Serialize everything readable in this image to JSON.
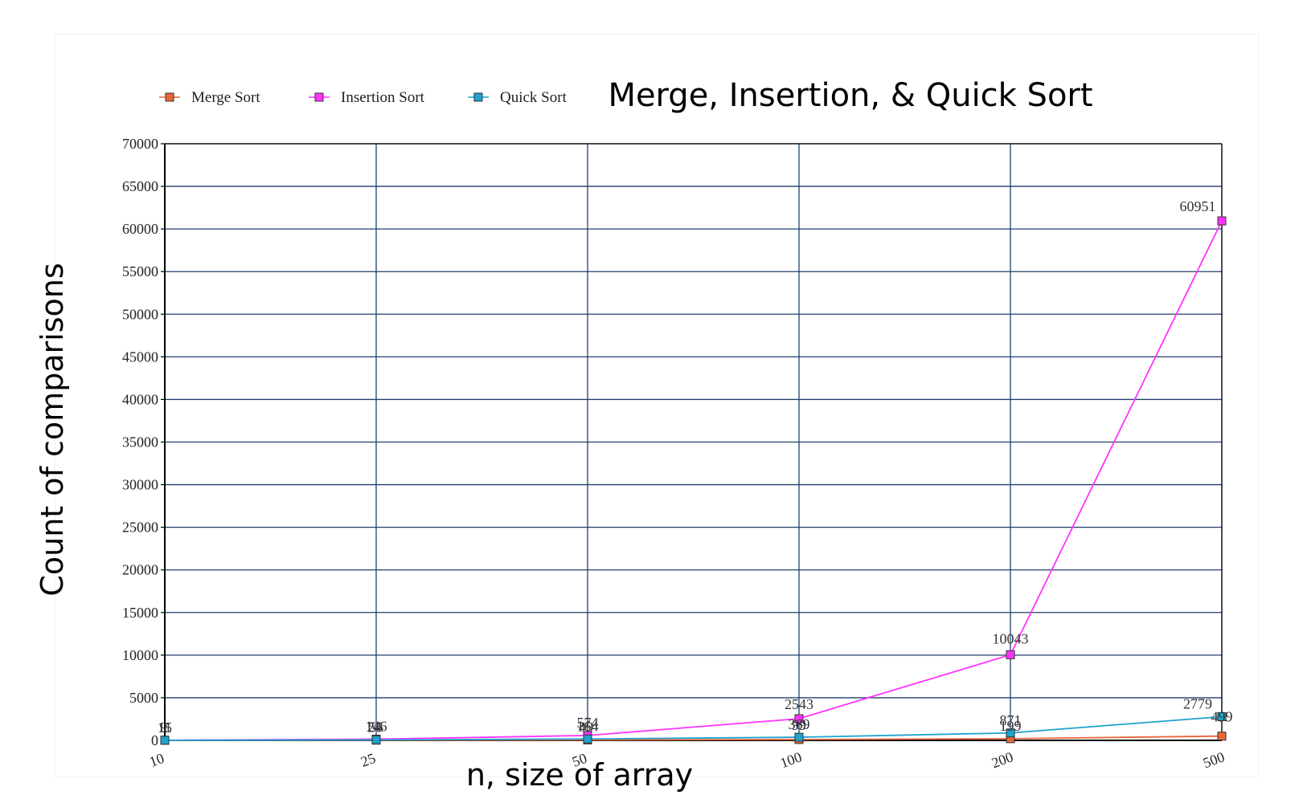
{
  "chart_data": {
    "type": "line",
    "title": "Merge, Insertion, & Quick Sort",
    "xlabel": "n, size of array",
    "ylabel": "Count of comparisons",
    "categories": [
      "10",
      "25",
      "50",
      "100",
      "200",
      "500"
    ],
    "ylim": [
      0,
      70000
    ],
    "yticks": [
      "0",
      "5000",
      "10000",
      "15000",
      "20000",
      "25000",
      "30000",
      "35000",
      "40000",
      "45000",
      "50000",
      "55000",
      "60000",
      "65000",
      "70000"
    ],
    "grid": true,
    "legend_position": "top-left",
    "series": [
      {
        "name": "Merge Sort",
        "color": "#e8673a",
        "values": [
          9,
          24,
          49,
          99,
          199,
          499
        ],
        "labels": [
          "9",
          "24",
          "49",
          "99",
          "199",
          "499"
        ]
      },
      {
        "name": "Insertion Sort",
        "color": "#ff33ff",
        "values": [
          15,
          146,
          574,
          2543,
          10043,
          60951
        ],
        "labels": [
          "15",
          "146",
          "574",
          "2543",
          "10043",
          "60951"
        ]
      },
      {
        "name": "Quick Sort",
        "color": "#1fa3cf",
        "values": [
          11,
          55,
          164,
          369,
          871,
          2779
        ],
        "labels": [
          "11",
          "55",
          "164",
          "369",
          "871",
          "2779"
        ]
      }
    ]
  }
}
